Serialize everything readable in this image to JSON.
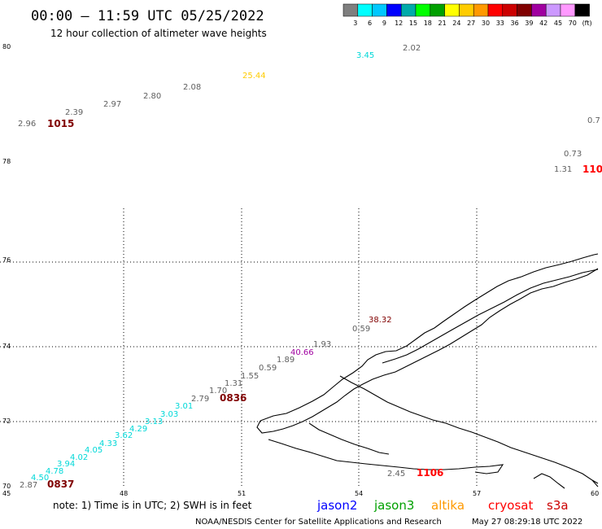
{
  "header": {
    "title": "00:00 – 11:59 UTC 05/25/2022",
    "subtitle": "12 hour collection of altimeter wave heights"
  },
  "color_scale": {
    "colors": [
      "#7f7f7f",
      "#00ffff",
      "#00c8ff",
      "#0000ff",
      "#00aaaa",
      "#00ff00",
      "#00a000",
      "#ffff00",
      "#ffcc00",
      "#ff9900",
      "#ff0000",
      "#cc0000",
      "#800000",
      "#a000a0",
      "#cc99ff",
      "#ff99ff",
      "#000000"
    ],
    "labels": [
      "3",
      "6",
      "9",
      "12",
      "15",
      "18",
      "21",
      "24",
      "27",
      "30",
      "33",
      "36",
      "39",
      "42",
      "45",
      "70",
      "(ft)"
    ]
  },
  "axes": {
    "x_ticks": [
      "45",
      "48",
      "51",
      "54",
      "57",
      "60"
    ],
    "y_ticks": [
      "80",
      "78",
      "76",
      "74",
      "72",
      "70"
    ]
  },
  "observations": [
    {
      "text": "2.96",
      "color": "#606060"
    },
    {
      "text": "1015",
      "color": "#800000",
      "kind": "time"
    },
    {
      "text": "2.39",
      "color": "#606060"
    },
    {
      "text": "2.97",
      "color": "#606060"
    },
    {
      "text": "2.80",
      "color": "#606060"
    },
    {
      "text": "2.08",
      "color": "#606060"
    },
    {
      "text": "25.44",
      "color": "#ffcc00"
    },
    {
      "text": "3.45",
      "color": "#00d8d8"
    },
    {
      "text": "2.02",
      "color": "#606060"
    },
    {
      "text": "0.7",
      "color": "#606060"
    },
    {
      "text": "0.73",
      "color": "#606060"
    },
    {
      "text": "1.31",
      "color": "#606060"
    },
    {
      "text": "110",
      "color": "#ff0000",
      "kind": "time"
    },
    {
      "text": "38.32",
      "color": "#800000"
    },
    {
      "text": "0.59",
      "color": "#606060"
    },
    {
      "text": "1.93",
      "color": "#606060"
    },
    {
      "text": "40.66",
      "color": "#a000a0"
    },
    {
      "text": "1.89",
      "color": "#606060"
    },
    {
      "text": "0.59",
      "color": "#606060"
    },
    {
      "text": "1.55",
      "color": "#606060"
    },
    {
      "text": "1.31",
      "color": "#606060"
    },
    {
      "text": "1.70",
      "color": "#606060"
    },
    {
      "text": "0836",
      "color": "#800000",
      "kind": "time"
    },
    {
      "text": "2.79",
      "color": "#606060"
    },
    {
      "text": "3.01",
      "color": "#00d8d8"
    },
    {
      "text": "3.03",
      "color": "#00d8d8"
    },
    {
      "text": "3.13",
      "color": "#00d8d8"
    },
    {
      "text": "4.29",
      "color": "#00d8d8"
    },
    {
      "text": "3.62",
      "color": "#00d8d8"
    },
    {
      "text": "4.33",
      "color": "#00d8d8"
    },
    {
      "text": "4.05",
      "color": "#00d8d8"
    },
    {
      "text": "4.02",
      "color": "#00d8d8"
    },
    {
      "text": "3.94",
      "color": "#00d8d8"
    },
    {
      "text": "4.78",
      "color": "#00d8d8"
    },
    {
      "text": "4.50",
      "color": "#00d8d8"
    },
    {
      "text": "2.87",
      "color": "#606060"
    },
    {
      "text": "0837",
      "color": "#800000",
      "kind": "time"
    },
    {
      "text": "2.45",
      "color": "#606060"
    },
    {
      "text": "1106",
      "color": "#ff0000",
      "kind": "time"
    }
  ],
  "legend": {
    "note": "note:  1) Time is in UTC; 2) SWH is in feet",
    "satellites": [
      {
        "name": "jason2",
        "color": "#0000ff"
      },
      {
        "name": "jason3",
        "color": "#00a000"
      },
      {
        "name": "altika",
        "color": "#ff9900"
      },
      {
        "name": "cryosat",
        "color": "#ff0000"
      },
      {
        "name": "s3a",
        "color": "#cc0000"
      }
    ]
  },
  "footer": {
    "credit": "NOAA/NESDIS Center for Satellite Applications and Research",
    "timestamp": "May 27 08:29:18 UTC 2022"
  }
}
